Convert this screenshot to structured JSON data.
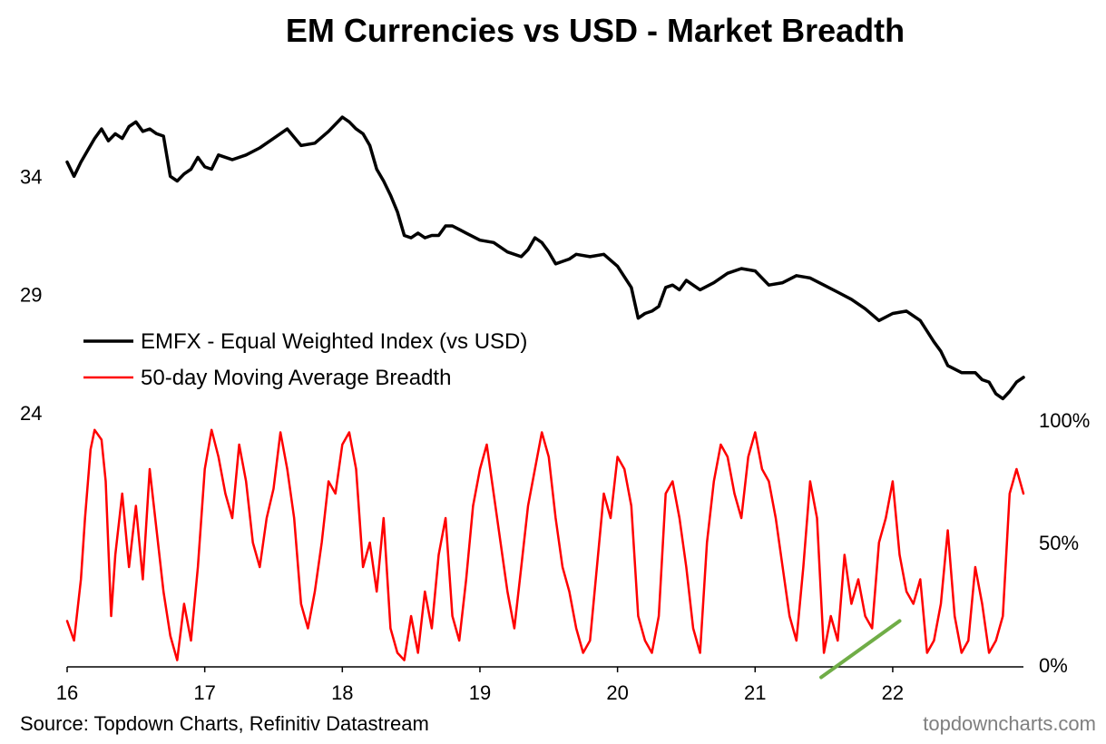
{
  "chart_data": {
    "type": "line",
    "title": "EM Currencies vs USD - Market Breadth",
    "x_tick_labels": [
      "16",
      "17",
      "18",
      "19",
      "20",
      "21",
      "22"
    ],
    "x_range": [
      2016.0,
      2022.95
    ],
    "left_axis": {
      "tick_labels": [
        "34",
        "29",
        "24"
      ],
      "tick_values": [
        34,
        29,
        24
      ],
      "range": [
        24,
        38
      ]
    },
    "right_axis": {
      "tick_labels": [
        "100%",
        "50%",
        "0%"
      ],
      "tick_values": [
        100,
        50,
        0
      ],
      "range": [
        0,
        100
      ]
    },
    "legend": {
      "placement": "middle-left"
    },
    "series": [
      {
        "name": "EMFX - Equal Weighted Index (vs USD)",
        "color": "#000000",
        "axis": "left",
        "x": [
          2016.0,
          2016.05,
          2016.1,
          2016.15,
          2016.2,
          2016.25,
          2016.3,
          2016.35,
          2016.4,
          2016.45,
          2016.5,
          2016.55,
          2016.6,
          2016.65,
          2016.7,
          2016.75,
          2016.8,
          2016.85,
          2016.9,
          2016.95,
          2017.0,
          2017.05,
          2017.1,
          2017.2,
          2017.3,
          2017.4,
          2017.5,
          2017.6,
          2017.7,
          2017.8,
          2017.9,
          2018.0,
          2018.05,
          2018.1,
          2018.15,
          2018.2,
          2018.25,
          2018.3,
          2018.35,
          2018.4,
          2018.45,
          2018.5,
          2018.55,
          2018.6,
          2018.65,
          2018.7,
          2018.75,
          2018.8,
          2018.9,
          2019.0,
          2019.1,
          2019.2,
          2019.3,
          2019.35,
          2019.4,
          2019.45,
          2019.5,
          2019.55,
          2019.6,
          2019.65,
          2019.7,
          2019.8,
          2019.9,
          2020.0,
          2020.1,
          2020.15,
          2020.2,
          2020.25,
          2020.3,
          2020.35,
          2020.4,
          2020.45,
          2020.5,
          2020.6,
          2020.7,
          2020.8,
          2020.9,
          2021.0,
          2021.1,
          2021.2,
          2021.3,
          2021.4,
          2021.5,
          2021.6,
          2021.7,
          2021.8,
          2021.9,
          2022.0,
          2022.1,
          2022.2,
          2022.3,
          2022.35,
          2022.4,
          2022.5,
          2022.6,
          2022.65,
          2022.7,
          2022.75,
          2022.8,
          2022.85,
          2022.9,
          2022.95
        ],
        "y": [
          34.6,
          34.0,
          34.6,
          35.1,
          35.6,
          36.0,
          35.5,
          35.8,
          35.6,
          36.1,
          36.3,
          35.9,
          36.0,
          35.8,
          35.7,
          34.0,
          33.8,
          34.1,
          34.3,
          34.8,
          34.4,
          34.3,
          34.9,
          34.7,
          34.9,
          35.2,
          35.6,
          36.0,
          35.3,
          35.4,
          35.9,
          36.5,
          36.3,
          36.0,
          35.8,
          35.3,
          34.3,
          33.8,
          33.2,
          32.5,
          31.5,
          31.4,
          31.6,
          31.4,
          31.5,
          31.5,
          31.9,
          31.9,
          31.6,
          31.3,
          31.2,
          30.8,
          30.6,
          30.9,
          31.4,
          31.2,
          30.8,
          30.3,
          30.4,
          30.5,
          30.7,
          30.6,
          30.7,
          30.2,
          29.3,
          28.0,
          28.2,
          28.3,
          28.5,
          29.3,
          29.4,
          29.2,
          29.6,
          29.2,
          29.5,
          29.9,
          30.1,
          30.0,
          29.4,
          29.5,
          29.8,
          29.7,
          29.4,
          29.1,
          28.8,
          28.4,
          27.9,
          28.2,
          28.3,
          27.9,
          27.0,
          26.6,
          26.0,
          25.7,
          25.7,
          25.4,
          25.3,
          24.8,
          24.6,
          24.9,
          25.3,
          25.5
        ]
      },
      {
        "name": "50-day Moving Average Breadth",
        "color": "#ff0000",
        "axis": "right",
        "x": [
          2016.0,
          2016.05,
          2016.1,
          2016.13,
          2016.17,
          2016.2,
          2016.25,
          2016.28,
          2016.32,
          2016.35,
          2016.4,
          2016.45,
          2016.5,
          2016.55,
          2016.6,
          2016.65,
          2016.7,
          2016.75,
          2016.8,
          2016.85,
          2016.9,
          2016.95,
          2017.0,
          2017.05,
          2017.1,
          2017.15,
          2017.2,
          2017.25,
          2017.3,
          2017.35,
          2017.4,
          2017.45,
          2017.5,
          2017.55,
          2017.6,
          2017.65,
          2017.7,
          2017.75,
          2017.8,
          2017.85,
          2017.9,
          2017.95,
          2018.0,
          2018.05,
          2018.1,
          2018.15,
          2018.2,
          2018.25,
          2018.3,
          2018.35,
          2018.4,
          2018.45,
          2018.5,
          2018.55,
          2018.6,
          2018.65,
          2018.7,
          2018.75,
          2018.8,
          2018.85,
          2018.9,
          2018.95,
          2019.0,
          2019.05,
          2019.1,
          2019.15,
          2019.2,
          2019.25,
          2019.3,
          2019.35,
          2019.4,
          2019.45,
          2019.5,
          2019.55,
          2019.6,
          2019.65,
          2019.7,
          2019.75,
          2019.8,
          2019.85,
          2019.9,
          2019.95,
          2020.0,
          2020.05,
          2020.1,
          2020.15,
          2020.2,
          2020.25,
          2020.3,
          2020.35,
          2020.4,
          2020.45,
          2020.5,
          2020.55,
          2020.6,
          2020.65,
          2020.7,
          2020.75,
          2020.8,
          2020.85,
          2020.9,
          2020.95,
          2021.0,
          2021.05,
          2021.1,
          2021.15,
          2021.2,
          2021.25,
          2021.3,
          2021.35,
          2021.4,
          2021.45,
          2021.5,
          2021.55,
          2021.6,
          2021.65,
          2021.7,
          2021.75,
          2021.8,
          2021.85,
          2021.9,
          2021.95,
          2022.0,
          2022.05,
          2022.1,
          2022.15,
          2022.2,
          2022.25,
          2022.3,
          2022.35,
          2022.4,
          2022.45,
          2022.5,
          2022.55,
          2022.6,
          2022.65,
          2022.7,
          2022.75,
          2022.8,
          2022.85,
          2022.9,
          2022.95
        ],
        "y": [
          18,
          10,
          35,
          60,
          88,
          96,
          92,
          75,
          20,
          45,
          70,
          40,
          65,
          35,
          80,
          55,
          30,
          12,
          2,
          25,
          10,
          40,
          80,
          96,
          85,
          70,
          60,
          90,
          75,
          50,
          40,
          60,
          72,
          95,
          80,
          60,
          25,
          15,
          30,
          50,
          75,
          70,
          90,
          95,
          80,
          40,
          50,
          30,
          60,
          15,
          5,
          2,
          20,
          5,
          30,
          15,
          45,
          60,
          20,
          10,
          35,
          65,
          80,
          90,
          70,
          50,
          30,
          15,
          40,
          65,
          80,
          95,
          85,
          60,
          40,
          30,
          15,
          5,
          10,
          40,
          70,
          60,
          85,
          80,
          65,
          20,
          10,
          5,
          20,
          70,
          75,
          60,
          40,
          15,
          5,
          50,
          75,
          90,
          85,
          70,
          60,
          85,
          95,
          80,
          75,
          60,
          40,
          20,
          10,
          40,
          75,
          60,
          5,
          20,
          10,
          45,
          25,
          35,
          20,
          15,
          50,
          60,
          75,
          45,
          30,
          25,
          35,
          5,
          10,
          25,
          55,
          20,
          5,
          10,
          40,
          25,
          5,
          10,
          20,
          70,
          80,
          70
        ]
      }
    ],
    "trend_line": {
      "color": "#70ad47",
      "x": [
        2021.48,
        2022.05
      ],
      "y": [
        -5,
        18
      ],
      "axis": "right"
    }
  },
  "footer": {
    "source": "Source: Topdown Charts, Refinitiv Datastream",
    "brand": "topdowncharts.com"
  }
}
